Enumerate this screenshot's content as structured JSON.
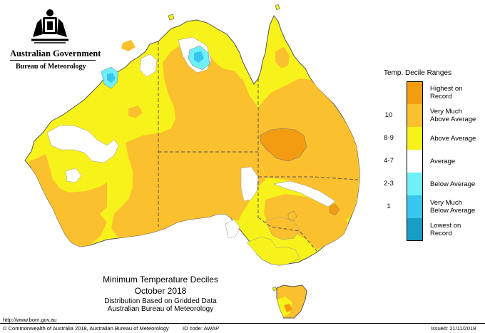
{
  "header": {
    "org_name": "Australian Government",
    "bureau_name": "Bureau of Meteorology"
  },
  "legend": {
    "title": "Temp. Decile Ranges",
    "items": [
      {
        "code": "",
        "label_1": "Highest on",
        "label_2": "Record",
        "color": "#f39c12"
      },
      {
        "code": "10",
        "label_1": "Very Much",
        "label_2": "Above Average",
        "color": "#fbc02d"
      },
      {
        "code": "8-9",
        "label_1": "Above Average",
        "label_2": "",
        "color": "#f7f21a"
      },
      {
        "code": "4-7",
        "label_1": "Average",
        "label_2": "",
        "color": "#ffffff"
      },
      {
        "code": "2-3",
        "label_1": "Below Average",
        "label_2": "",
        "color": "#6ff0f7"
      },
      {
        "code": "1",
        "label_1": "Very Much",
        "label_2": "Below Average",
        "color": "#36c6ef"
      },
      {
        "code": "",
        "label_1": "Lowest on",
        "label_2": "Record",
        "color": "#1a9cc9"
      }
    ]
  },
  "map": {
    "title": "Minimum Temperature Deciles",
    "period": "October 2018",
    "subtitle": "Distribution Based on Gridded Data",
    "source": "Australian Bureau of Meteorology",
    "colors": {
      "above_average": "#f7f21a",
      "very_much_above": "#fbc02d",
      "highest": "#f39c12",
      "average": "#ffffff",
      "below_average": "#6ff0f7",
      "very_much_below": "#36c6ef"
    }
  },
  "footer": {
    "url": "http://www.bom.gov.au",
    "copyright": "© Commonwealth of Australia 2018, Australian Bureau of Meteorology",
    "id_code": "ID code: AWAP",
    "issued": "Issued: 21/11/2018"
  }
}
